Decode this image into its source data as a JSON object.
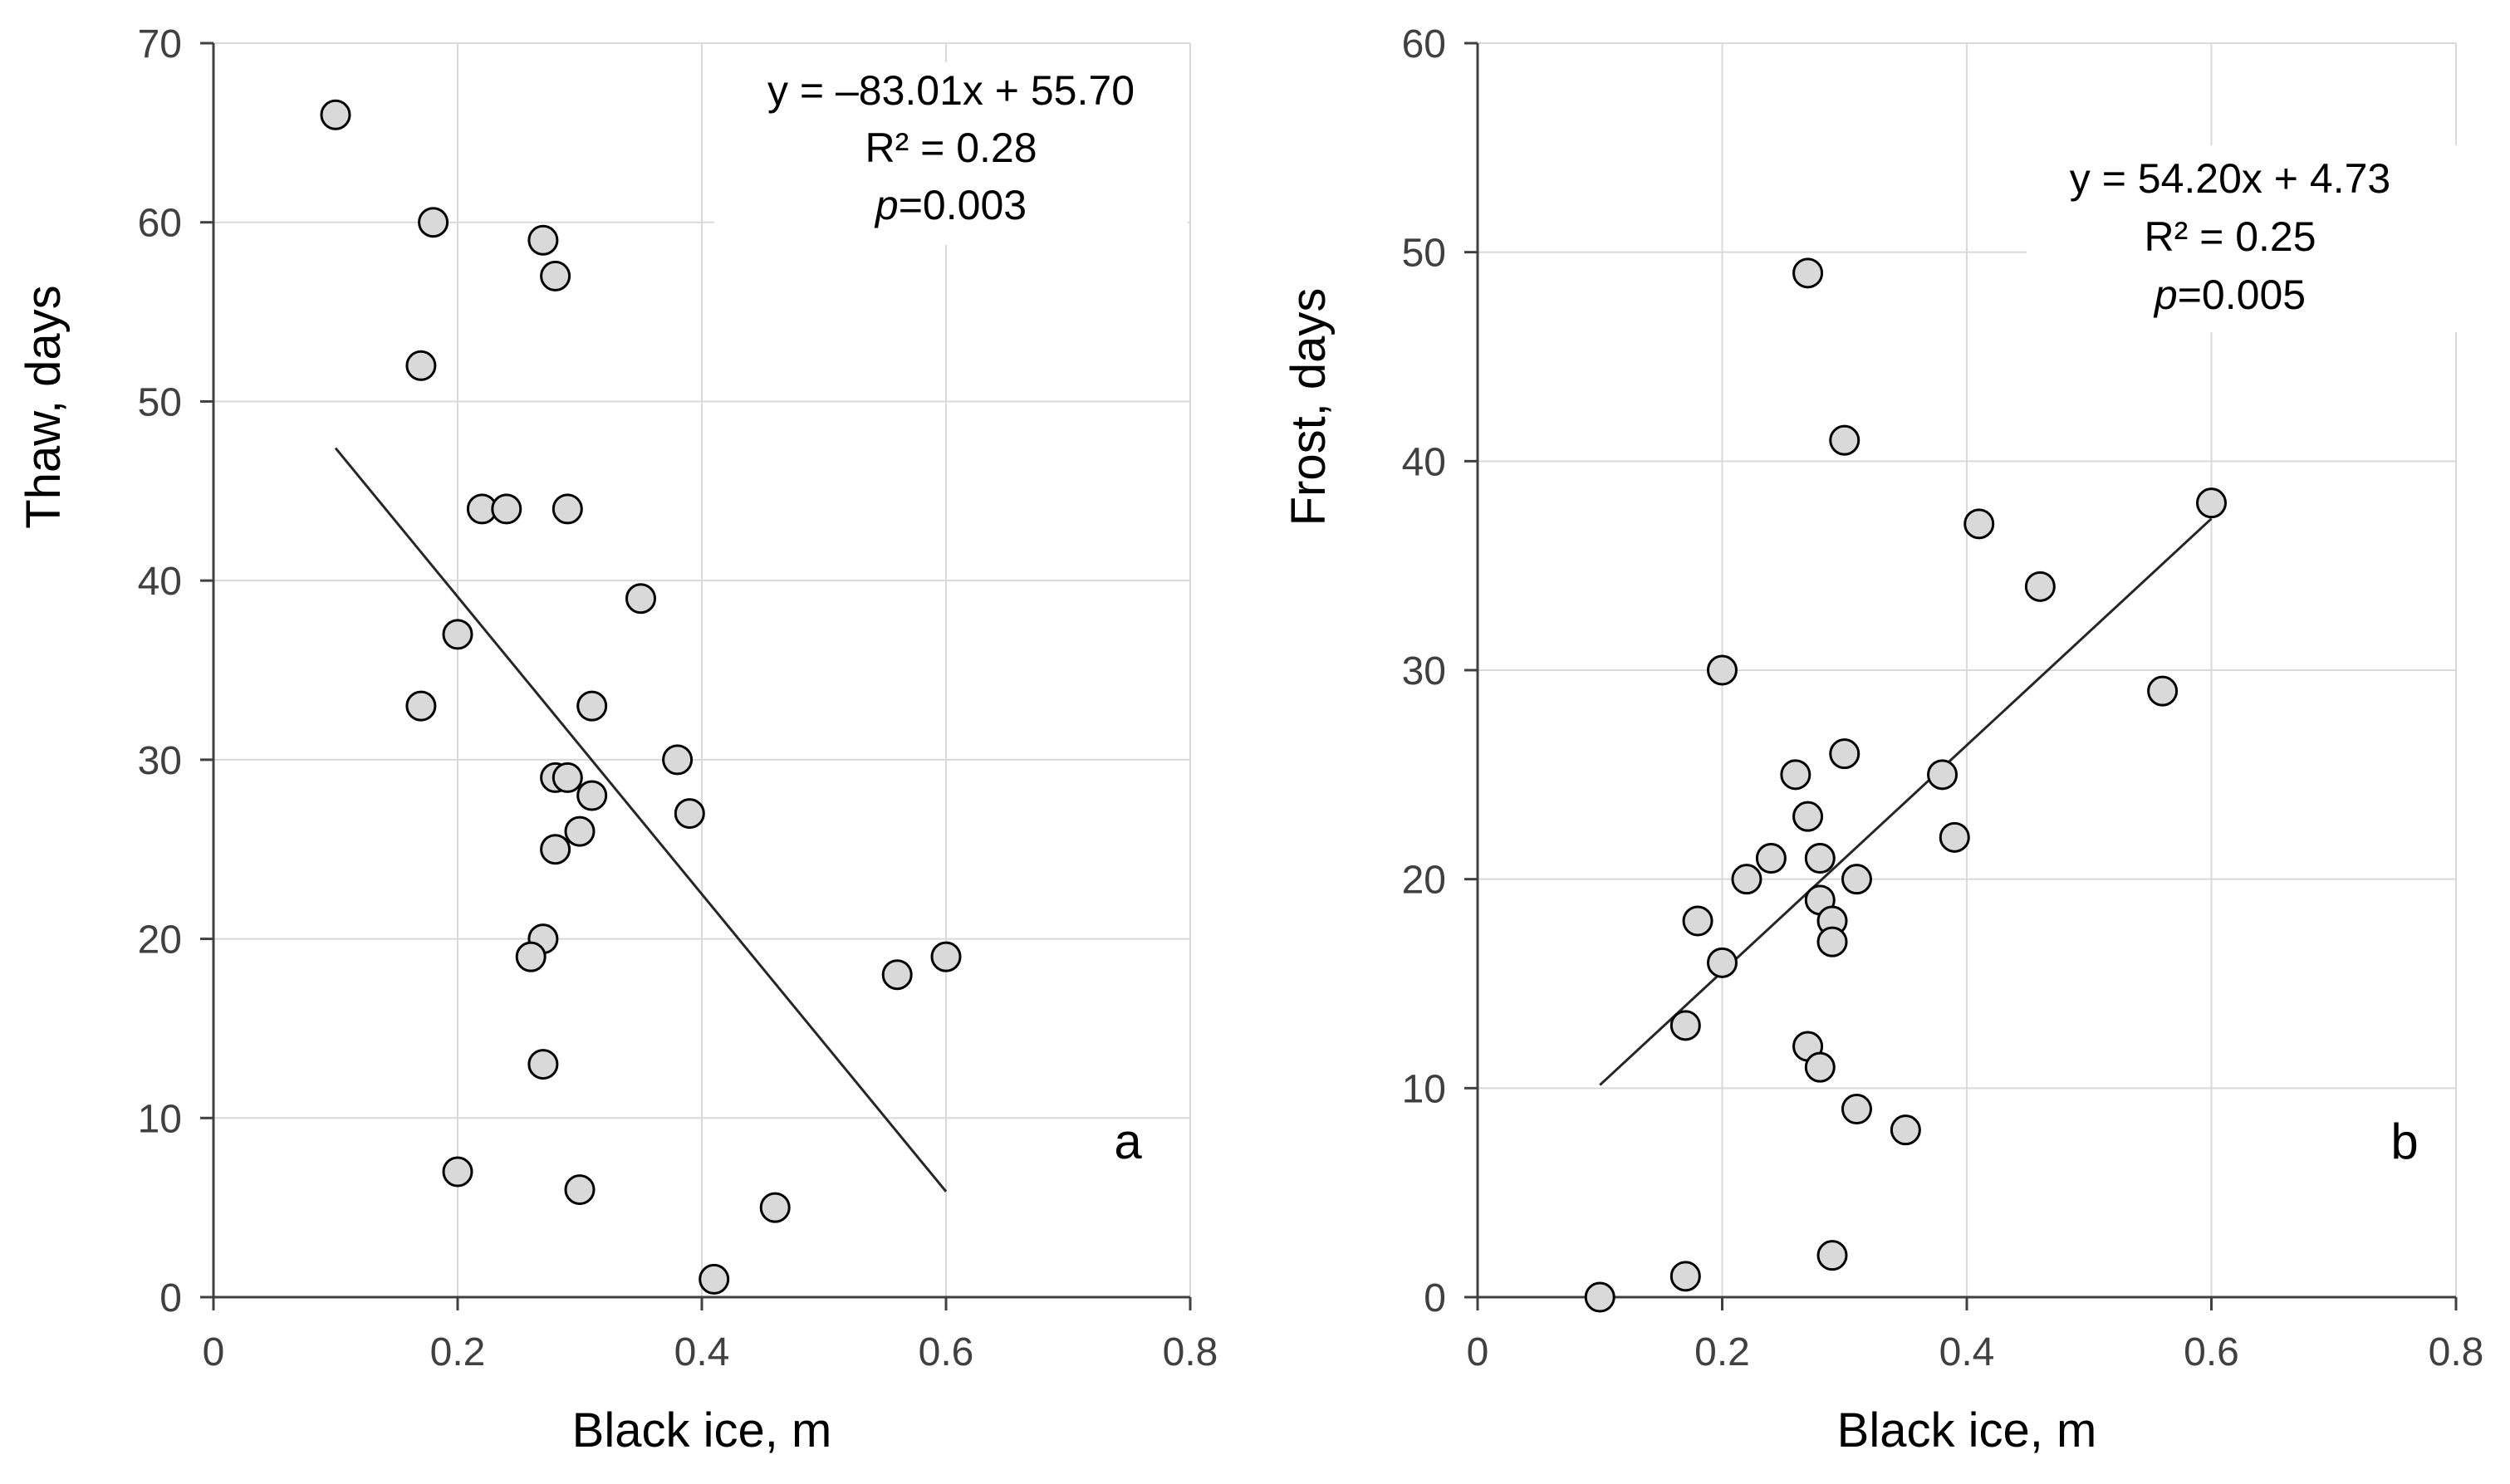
{
  "chart_data": [
    {
      "type": "scatter",
      "panel": "a",
      "xlabel": "Black ice, m",
      "ylabel": "Thaw, days",
      "xlim": [
        0,
        0.8
      ],
      "ylim": [
        0,
        70
      ],
      "xticks": [
        0,
        0.2,
        0.4,
        0.6,
        0.8
      ],
      "xtick_labels": [
        "0",
        "0.2",
        "0.4",
        "0.6",
        "0.8"
      ],
      "yticks": [
        0,
        10,
        20,
        30,
        40,
        50,
        60,
        70
      ],
      "ytick_labels": [
        "0",
        "10",
        "20",
        "30",
        "40",
        "50",
        "60",
        "70"
      ],
      "grid": true,
      "points": [
        [
          0.1,
          66
        ],
        [
          0.18,
          60
        ],
        [
          0.17,
          52
        ],
        [
          0.27,
          59
        ],
        [
          0.28,
          57
        ],
        [
          0.22,
          44
        ],
        [
          0.24,
          44
        ],
        [
          0.29,
          44
        ],
        [
          0.35,
          39
        ],
        [
          0.2,
          37
        ],
        [
          0.17,
          33
        ],
        [
          0.31,
          33
        ],
        [
          0.38,
          30
        ],
        [
          0.28,
          29
        ],
        [
          0.29,
          29
        ],
        [
          0.31,
          28
        ],
        [
          0.39,
          27
        ],
        [
          0.3,
          26
        ],
        [
          0.28,
          25
        ],
        [
          0.27,
          20
        ],
        [
          0.26,
          19
        ],
        [
          0.56,
          18
        ],
        [
          0.6,
          19
        ],
        [
          0.27,
          13
        ],
        [
          0.2,
          7
        ],
        [
          0.3,
          6
        ],
        [
          0.46,
          5
        ],
        [
          0.41,
          1
        ]
      ],
      "trendline": {
        "slope": -83.01,
        "intercept": 55.7,
        "x_range": [
          0.1,
          0.6
        ]
      },
      "annotation_lines": [
        "y = –83.01x + 55.70",
        "R² = 0.28",
        "=0.003"
      ],
      "annotation_p": "p"
    },
    {
      "type": "scatter",
      "panel": "b",
      "xlabel": "Black ice, m",
      "ylabel": "Frost, days",
      "xlim": [
        0,
        0.8
      ],
      "ylim": [
        0,
        60
      ],
      "xticks": [
        0,
        0.2,
        0.4,
        0.6,
        0.8
      ],
      "xtick_labels": [
        "0",
        "0.2",
        "0.4",
        "0.6",
        "0.8"
      ],
      "yticks": [
        0,
        10,
        20,
        30,
        40,
        50,
        60
      ],
      "ytick_labels": [
        "0",
        "10",
        "20",
        "30",
        "40",
        "50",
        "60"
      ],
      "grid": true,
      "points": [
        [
          0.27,
          49
        ],
        [
          0.3,
          41
        ],
        [
          0.41,
          37
        ],
        [
          0.6,
          38
        ],
        [
          0.46,
          34
        ],
        [
          0.2,
          30
        ],
        [
          0.56,
          29
        ],
        [
          0.26,
          25
        ],
        [
          0.3,
          26
        ],
        [
          0.38,
          25
        ],
        [
          0.27,
          23
        ],
        [
          0.39,
          22
        ],
        [
          0.24,
          21
        ],
        [
          0.28,
          21
        ],
        [
          0.22,
          20
        ],
        [
          0.31,
          20
        ],
        [
          0.28,
          19
        ],
        [
          0.18,
          18
        ],
        [
          0.29,
          18
        ],
        [
          0.29,
          17
        ],
        [
          0.2,
          16
        ],
        [
          0.17,
          13
        ],
        [
          0.27,
          12
        ],
        [
          0.28,
          11
        ],
        [
          0.31,
          9
        ],
        [
          0.35,
          8
        ],
        [
          0.29,
          2
        ],
        [
          0.17,
          1
        ],
        [
          0.1,
          0
        ]
      ],
      "trendline": {
        "slope": 54.2,
        "intercept": 4.73,
        "x_range": [
          0.1,
          0.6
        ]
      },
      "annotation_lines": [
        "y = 54.20x + 4.73",
        "R² = 0.25",
        "=0.005"
      ],
      "annotation_p": "p"
    }
  ],
  "colors": {
    "grid": "#d9d9d9",
    "axis": "#404040",
    "marker_fill": "#d9d9d9",
    "marker_stroke": "#000000",
    "trendline": "#262626"
  }
}
